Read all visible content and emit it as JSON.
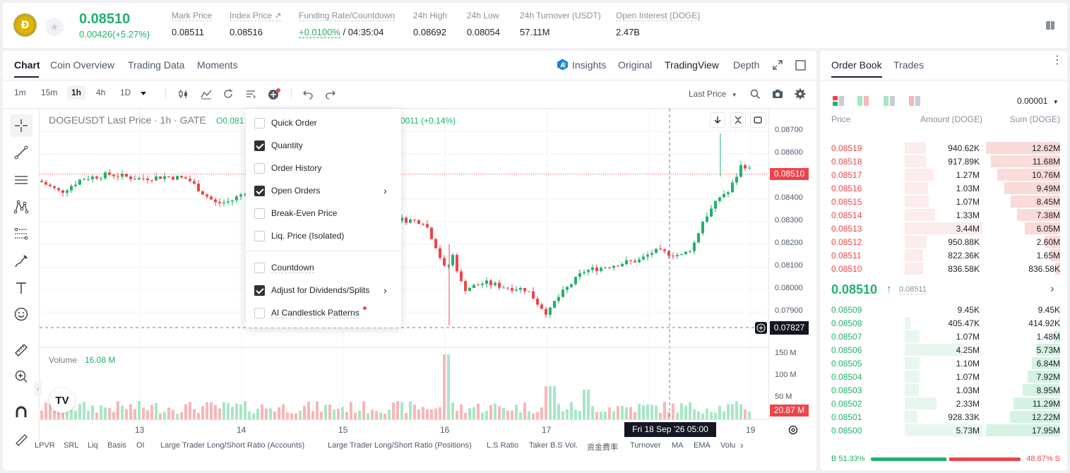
{
  "ticker": {
    "price": "0.08510",
    "change": "0.00426(+5.27%)",
    "stats": [
      {
        "label": "Mark Price",
        "value": "0.08511"
      },
      {
        "label": "Index Price ↗",
        "value": "0.08516"
      },
      {
        "label": "Funding Rate/Countdown",
        "value_green": "+0.0100%",
        "value": " / 04:35:04"
      },
      {
        "label": "24h High",
        "value": "0.08692"
      },
      {
        "label": "24h Low",
        "value": "0.08054"
      },
      {
        "label": "24h Turnover (USDT)",
        "value": "57.11M"
      },
      {
        "label": "Open Interest (DOGE)",
        "value": "2.47B"
      }
    ]
  },
  "chart_tabs": [
    "Chart",
    "Coin Overview",
    "Trading Data",
    "Moments"
  ],
  "view_tabs": {
    "insights": "Insights",
    "original": "Original",
    "tradingview": "TradingView",
    "depth": "Depth"
  },
  "timeframes": [
    "1m",
    "15m",
    "1h",
    "4h",
    "1D"
  ],
  "last_price_select": "Last Price",
  "legend": {
    "symbol": "DOGEUSDT Last Price · 1h · GATE",
    "ohlc_prefix": "O0.081",
    "change_suffix": "0011 (+0.14%)",
    "volume_label": "Volume",
    "volume_value": "16.08 M"
  },
  "price_axis": [
    "0.08700",
    "0.08600",
    "0.08400",
    "0.08300",
    "0.08200",
    "0.08100",
    "0.08000",
    "0.07900"
  ],
  "current_price_tag": "0.08510",
  "crosshair_price_tag": "0.07827",
  "volume_axis": [
    "150 M",
    "100 M",
    "50 M"
  ],
  "volume_tag": "20.87 M",
  "date_axis": [
    "13",
    "14",
    "15",
    "16",
    "17",
    "19"
  ],
  "crosshair_date": "Fri 18 Sep '26   05:00",
  "menu": {
    "items": [
      {
        "label": "Quick Order",
        "checked": false
      },
      {
        "label": "Quantity",
        "checked": true
      },
      {
        "label": "Order History",
        "checked": false
      },
      {
        "label": "Open Orders",
        "checked": true
      },
      {
        "label": "Break-Even Price",
        "checked": false
      },
      {
        "label": "Liq. Price (Isolated)",
        "checked": false
      },
      {
        "label": "Countdown",
        "checked": false
      },
      {
        "label": "Adjust for Dividends/Splits",
        "checked": true
      },
      {
        "label": "AI Candlestick Patterns",
        "checked": false
      }
    ]
  },
  "indicators": [
    "LPVR",
    "SRL",
    "Liq",
    "Basis",
    "OI",
    "Large Trader Long/Short Ratio (Accounts)",
    "Large Trader Long/Short Ratio (Positions)",
    "L.S Ratio",
    "Taker B.S Vol.",
    "资金费率",
    "Turnover",
    "MA",
    "EMA",
    "Volu"
  ],
  "orderbook": {
    "tabs": [
      "Order Book",
      "Trades"
    ],
    "precision": "0.00001",
    "headers": [
      "Price",
      "Amount (DOGE)",
      "Sum (DOGE)"
    ],
    "asks": [
      {
        "price": "0.08519",
        "amount": "940.62K",
        "sum": "12.62M",
        "sum_frac": 1.0,
        "amt_frac": 0.27
      },
      {
        "price": "0.08518",
        "amount": "917.89K",
        "sum": "11.68M",
        "sum_frac": 0.93,
        "amt_frac": 0.27
      },
      {
        "price": "0.08517",
        "amount": "1.27M",
        "sum": "10.76M",
        "sum_frac": 0.85,
        "amt_frac": 0.37
      },
      {
        "price": "0.08516",
        "amount": "1.03M",
        "sum": "9.49M",
        "sum_frac": 0.75,
        "amt_frac": 0.3
      },
      {
        "price": "0.08515",
        "amount": "1.07M",
        "sum": "8.45M",
        "sum_frac": 0.67,
        "amt_frac": 0.31
      },
      {
        "price": "0.08514",
        "amount": "1.33M",
        "sum": "7.38M",
        "sum_frac": 0.58,
        "amt_frac": 0.39
      },
      {
        "price": "0.08513",
        "amount": "3.44M",
        "sum": "6.05M",
        "sum_frac": 0.48,
        "amt_frac": 1.0
      },
      {
        "price": "0.08512",
        "amount": "950.88K",
        "sum": "2.60M",
        "sum_frac": 0.21,
        "amt_frac": 0.28
      },
      {
        "price": "0.08511",
        "amount": "822.36K",
        "sum": "1.65M",
        "sum_frac": 0.13,
        "amt_frac": 0.24
      },
      {
        "price": "0.08510",
        "amount": "836.58K",
        "sum": "836.58K",
        "sum_frac": 0.07,
        "amt_frac": 0.24
      }
    ],
    "mid_price": "0.08510",
    "mid_mark": "0.08511",
    "bids": [
      {
        "price": "0.08509",
        "amount": "9.45K",
        "sum": "9.45K",
        "sum_frac": 0.01,
        "amt_frac": 0.0
      },
      {
        "price": "0.08508",
        "amount": "405.47K",
        "sum": "414.92K",
        "sum_frac": 0.02,
        "amt_frac": 0.07
      },
      {
        "price": "0.08507",
        "amount": "1.07M",
        "sum": "1.48M",
        "sum_frac": 0.08,
        "amt_frac": 0.19
      },
      {
        "price": "0.08506",
        "amount": "4.25M",
        "sum": "5.73M",
        "sum_frac": 0.32,
        "amt_frac": 0.74
      },
      {
        "price": "0.08505",
        "amount": "1.10M",
        "sum": "6.84M",
        "sum_frac": 0.38,
        "amt_frac": 0.19
      },
      {
        "price": "0.08504",
        "amount": "1.07M",
        "sum": "7.92M",
        "sum_frac": 0.44,
        "amt_frac": 0.19
      },
      {
        "price": "0.08503",
        "amount": "1.03M",
        "sum": "8.95M",
        "sum_frac": 0.5,
        "amt_frac": 0.18
      },
      {
        "price": "0.08502",
        "amount": "2.33M",
        "sum": "11.29M",
        "sum_frac": 0.63,
        "amt_frac": 0.41
      },
      {
        "price": "0.08501",
        "amount": "928.33K",
        "sum": "12.22M",
        "sum_frac": 0.68,
        "amt_frac": 0.16
      },
      {
        "price": "0.08500",
        "amount": "5.73M",
        "sum": "17.95M",
        "sum_frac": 1.0,
        "amt_frac": 1.0
      }
    ],
    "buy_ratio": "B 51.33%",
    "sell_ratio": "48.67% S",
    "buy_frac": 0.5133
  },
  "colors": {
    "up": "#20b26c",
    "down": "#ef454a",
    "up_light": "#e8f7ee",
    "down_light": "#fdecec"
  }
}
